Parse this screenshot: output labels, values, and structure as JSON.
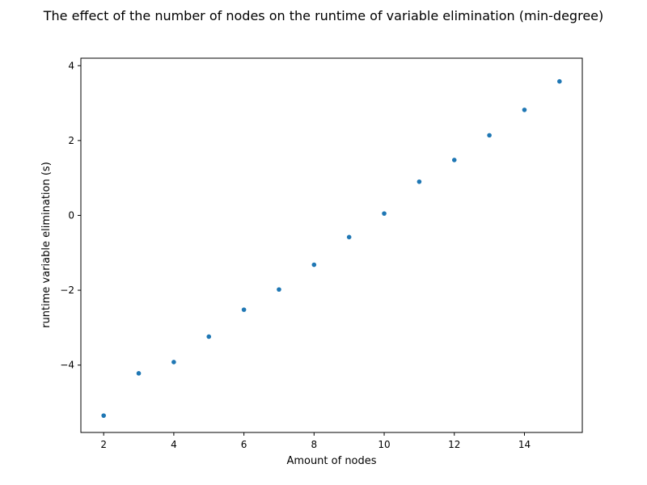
{
  "chart_data": {
    "type": "scatter",
    "title": "The effect of the number of nodes on the runtime of variable elimination (min-degree)",
    "xlabel": "Amount of nodes",
    "ylabel": "runtime variable elimination (s)",
    "xlim": [
      1.35,
      15.65
    ],
    "ylim": [
      -5.8,
      4.2
    ],
    "xticks": [
      2,
      4,
      6,
      8,
      10,
      12,
      14
    ],
    "yticks": [
      -4,
      -2,
      0,
      2,
      4
    ],
    "grid": false,
    "legend": "none",
    "series": [
      {
        "color": "#1f77b4",
        "x": [
          2,
          3,
          4,
          5,
          6,
          7,
          8,
          9,
          10,
          11,
          12,
          13,
          14,
          15
        ],
        "y": [
          -5.35,
          -4.22,
          -3.92,
          -3.24,
          -2.52,
          -1.98,
          -1.32,
          -0.58,
          0.05,
          0.9,
          1.48,
          2.14,
          2.82,
          3.58
        ]
      }
    ]
  }
}
